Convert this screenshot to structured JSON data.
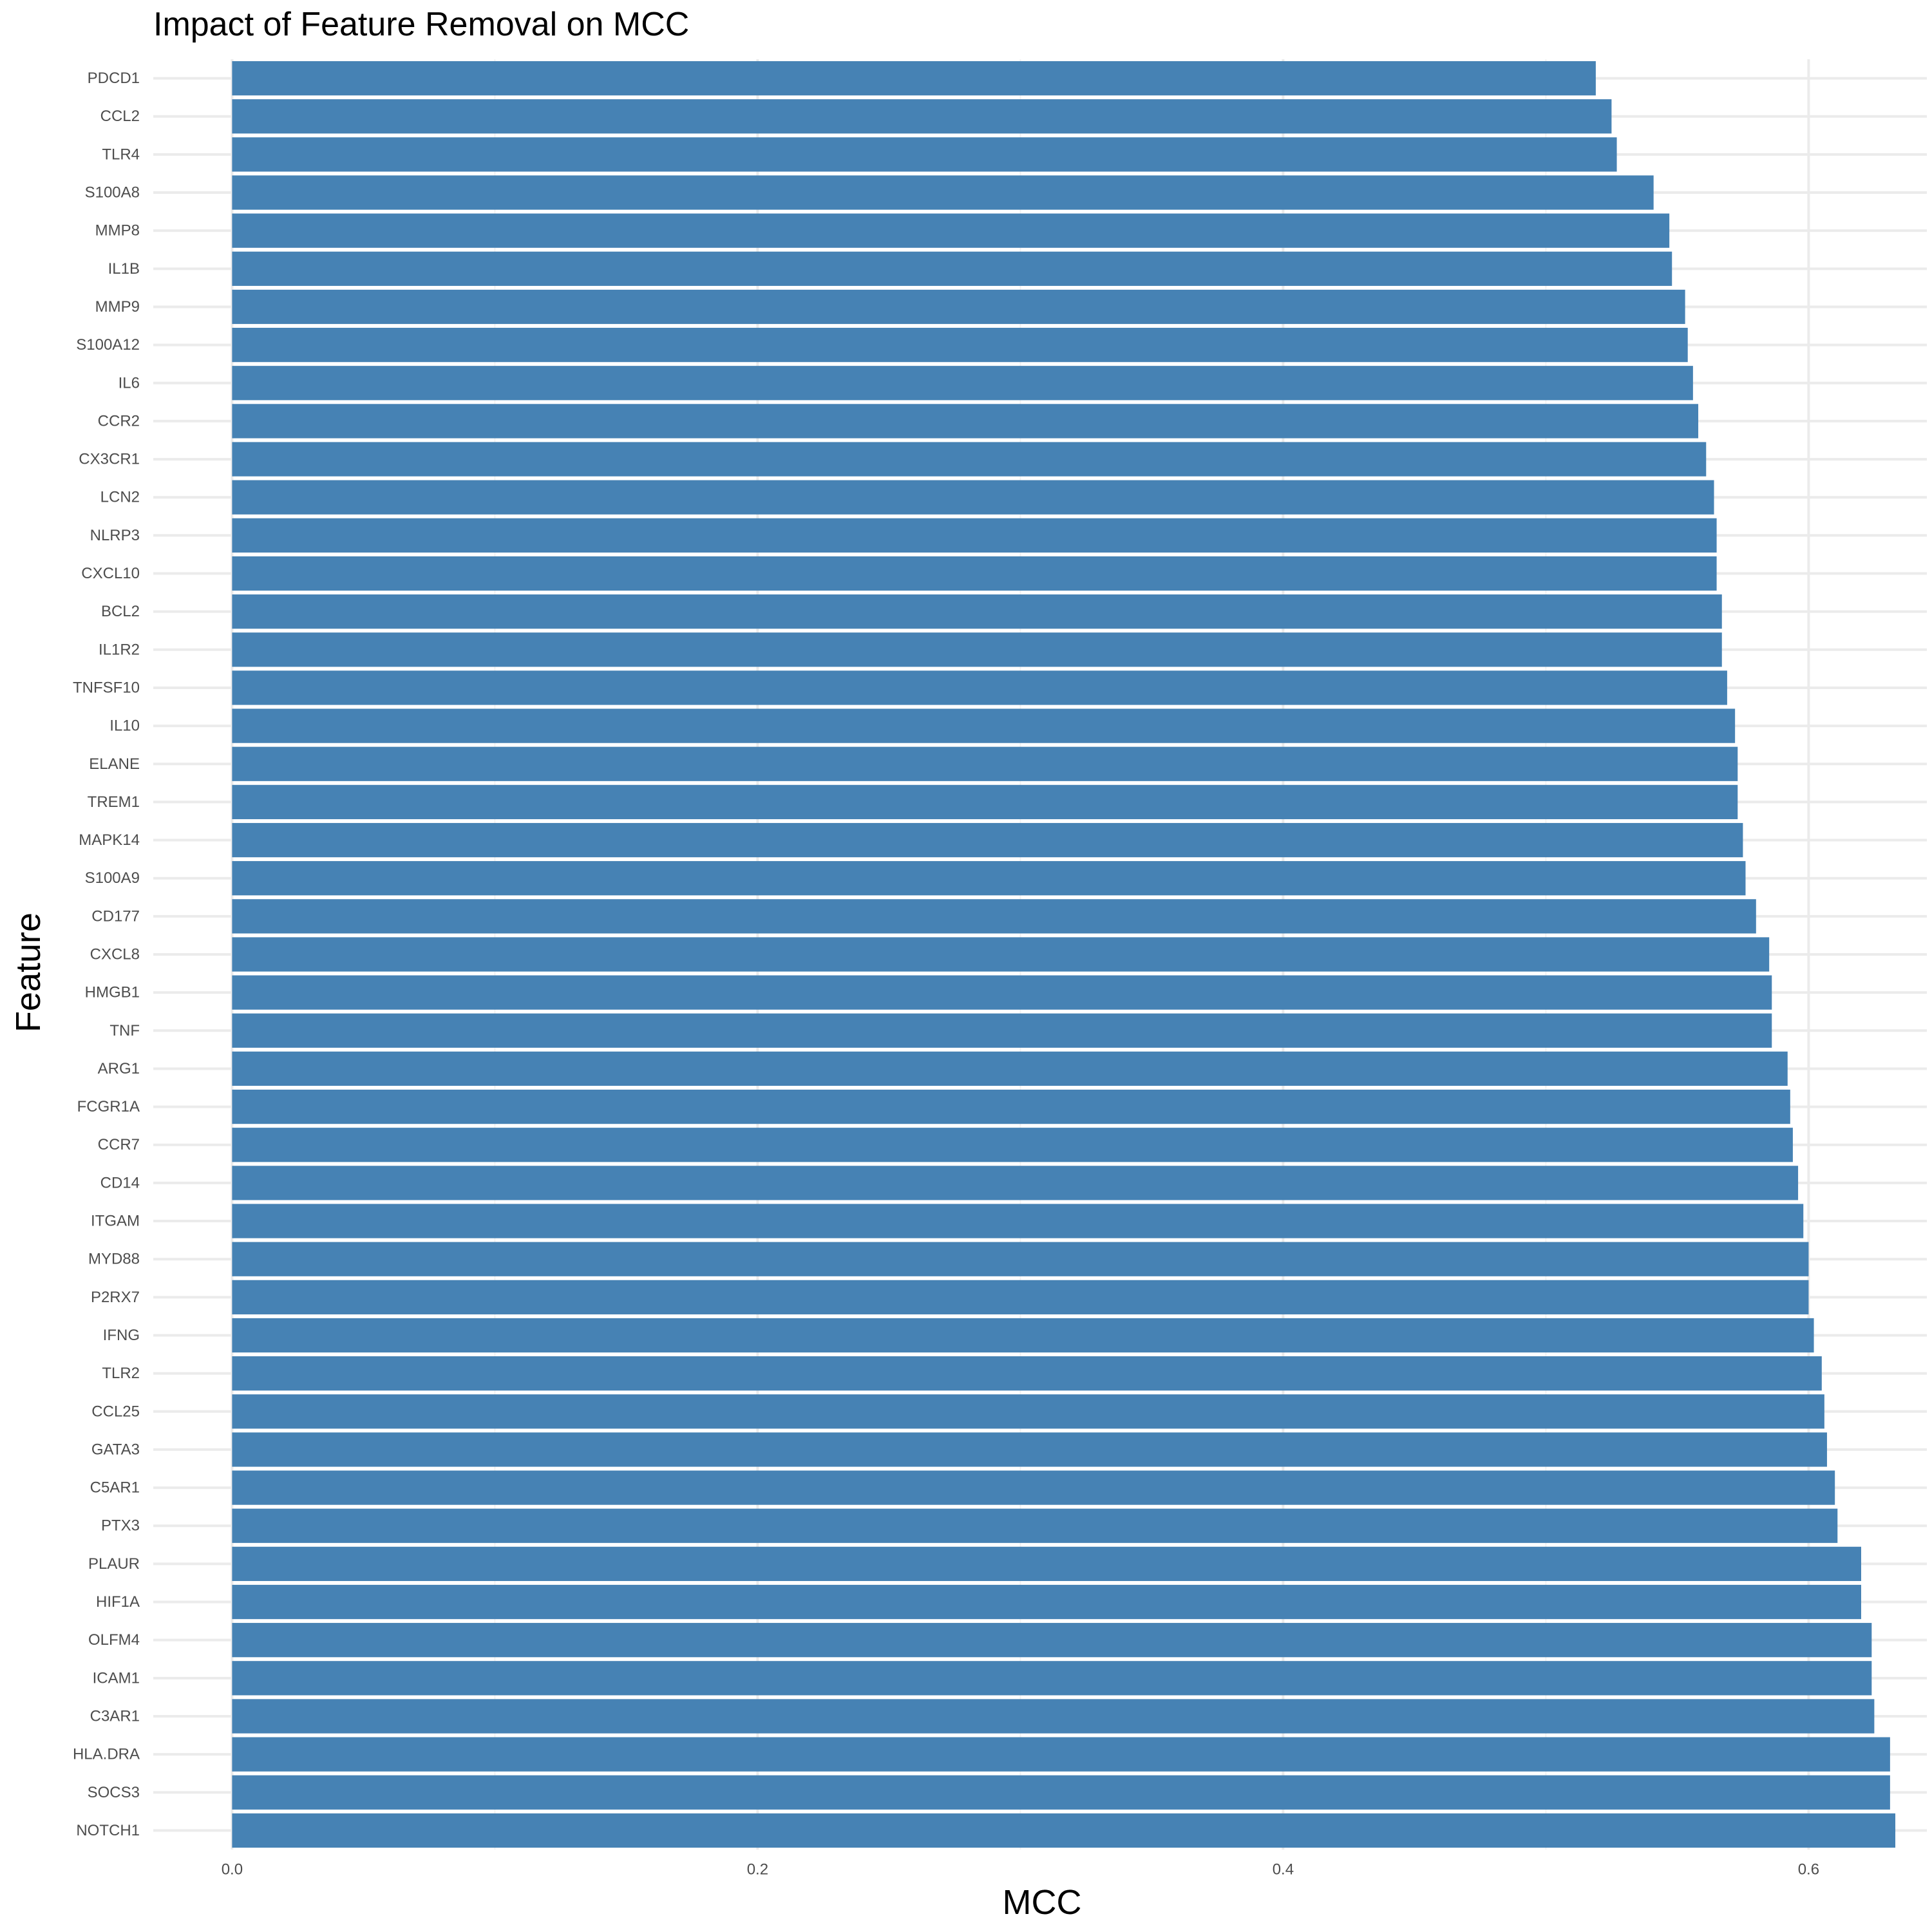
{
  "chart_data": {
    "type": "bar",
    "orientation": "horizontal",
    "title": "Impact of Feature Removal on MCC",
    "xlabel": "MCC",
    "ylabel": "Feature",
    "xlim": [
      -0.03,
      0.645
    ],
    "xticks": [
      0.0,
      0.2,
      0.4,
      0.6
    ],
    "xtick_labels": [
      "0.0",
      "0.2",
      "0.4",
      "0.6"
    ],
    "grid": true,
    "legend": "none",
    "bar_color": "#4682B4",
    "categories": [
      "PDCD1",
      "CCL2",
      "TLR4",
      "S100A8",
      "MMP8",
      "IL1B",
      "MMP9",
      "S100A12",
      "IL6",
      "CCR2",
      "CX3CR1",
      "LCN2",
      "NLRP3",
      "CXCL10",
      "BCL2",
      "IL1R2",
      "TNFSF10",
      "IL10",
      "ELANE",
      "TREM1",
      "MAPK14",
      "S100A9",
      "CD177",
      "CXCL8",
      "HMGB1",
      "TNF",
      "ARG1",
      "FCGR1A",
      "CCR7",
      "CD14",
      "ITGAM",
      "MYD88",
      "P2RX7",
      "IFNG",
      "TLR2",
      "CCL25",
      "GATA3",
      "C5AR1",
      "PTX3",
      "PLAUR",
      "HIF1A",
      "OLFM4",
      "ICAM1",
      "C3AR1",
      "HLA.DRA",
      "SOCS3",
      "NOTCH1"
    ],
    "values": [
      0.519,
      0.525,
      0.527,
      0.541,
      0.547,
      0.548,
      0.553,
      0.554,
      0.556,
      0.558,
      0.561,
      0.564,
      0.565,
      0.565,
      0.567,
      0.567,
      0.569,
      0.572,
      0.573,
      0.573,
      0.575,
      0.576,
      0.58,
      0.585,
      0.586,
      0.586,
      0.592,
      0.593,
      0.594,
      0.596,
      0.598,
      0.6,
      0.6,
      0.602,
      0.605,
      0.606,
      0.607,
      0.61,
      0.611,
      0.62,
      0.62,
      0.624,
      0.624,
      0.625,
      0.631,
      0.631,
      0.633
    ]
  }
}
